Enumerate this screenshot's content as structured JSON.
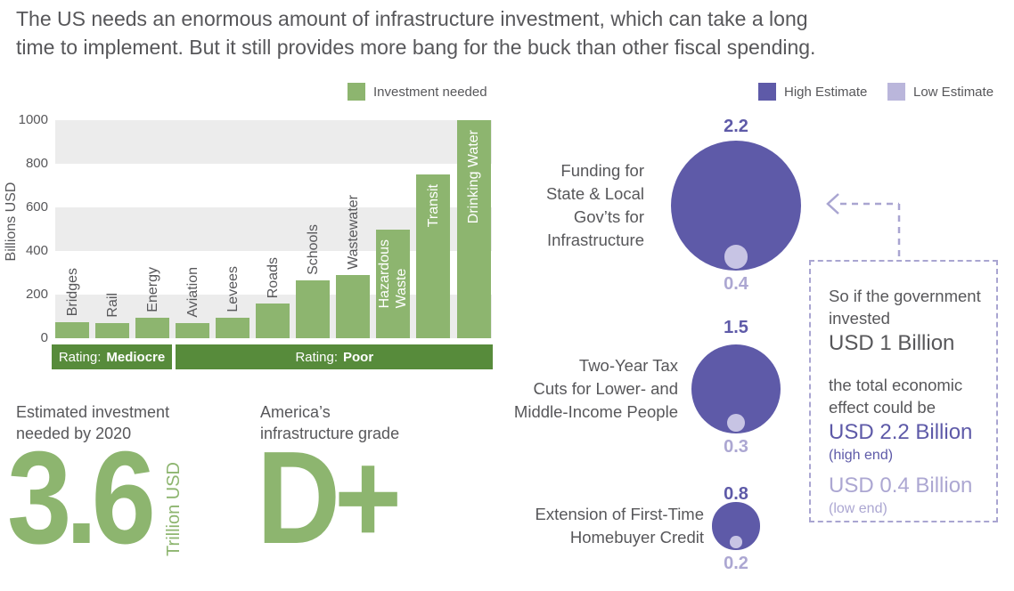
{
  "title": {
    "line1": "The US needs an enormous amount of infrastructure investment, which can take a long",
    "line2": "time to implement. But it still provides more bang for the buck than other fiscal spending."
  },
  "chart_data": [
    {
      "type": "bar",
      "legend": [
        {
          "label": "Investment needed",
          "color": "#8db56f"
        }
      ],
      "ylabel": "Billions USD",
      "ylim": [
        0,
        1000
      ],
      "yticks": [
        0,
        200,
        400,
        600,
        800,
        1000
      ],
      "grid": "alternating gray bands on 0-200, 400-600, 800-1000",
      "categories": [
        "Bridges",
        "Rail",
        "Energy",
        "Aviation",
        "Levees",
        "Roads",
        "Schools",
        "Wastewater",
        "Hazardous Waste",
        "Transit",
        "Drinking Water"
      ],
      "values": [
        75,
        70,
        95,
        70,
        95,
        160,
        265,
        290,
        500,
        750,
        1000
      ],
      "label_placement": [
        "out",
        "out",
        "out",
        "out",
        "out",
        "out",
        "out",
        "out",
        "in",
        "in",
        "in"
      ],
      "label_wrap": [
        false,
        false,
        false,
        false,
        false,
        false,
        false,
        false,
        true,
        false,
        false
      ],
      "group_ratings": [
        {
          "prefix": "Rating:",
          "value": "Mediocre",
          "span": [
            0,
            2
          ]
        },
        {
          "prefix": "Rating:",
          "value": "Poor",
          "span": [
            3,
            10
          ]
        }
      ]
    },
    {
      "type": "bubble",
      "legend": [
        {
          "label": "High Estimate",
          "color": "#5e5aa8"
        },
        {
          "label": "Low Estimate",
          "color": "#bab6db"
        }
      ],
      "items": [
        {
          "label_lines": [
            "Funding for",
            "State & Local",
            "Gov’ts for",
            "Infrastructure"
          ],
          "high": 2.2,
          "low": 0.4
        },
        {
          "label_lines": [
            "Two-Year Tax",
            "Cuts for Lower- and",
            "Middle-Income People"
          ],
          "high": 1.5,
          "low": 0.3
        },
        {
          "label_lines": [
            "Extension of First-Time",
            "Homebuyer Credit"
          ],
          "high": 0.8,
          "low": 0.2
        }
      ]
    }
  ],
  "stats": [
    {
      "label": "Estimated investment\nneeded by 2020",
      "value": "3.6",
      "unit": "Trillion USD"
    },
    {
      "label": "America’s\ninfrastructure grade",
      "value": "D+"
    }
  ],
  "callout": {
    "intro": "So if the government\ninvested",
    "invest": "USD 1 Billion",
    "middle": "the total economic\neffect could be",
    "high": "USD 2.2 Billion",
    "high_note": "(high end)",
    "low": "USD 0.4 Billion",
    "low_note": "(low end)"
  },
  "colors": {
    "bar_green": "#8db56f",
    "rating_green": "#578b3b",
    "band_gray": "#ececec",
    "text_gray": "#57575a",
    "purple_high": "#5e5aa8",
    "purple_low_circle": "#c7c4e4",
    "purple_low_swatch": "#bab6db",
    "purple_low_text": "#aca7d2",
    "dash_purple": "#a9a5d1"
  }
}
